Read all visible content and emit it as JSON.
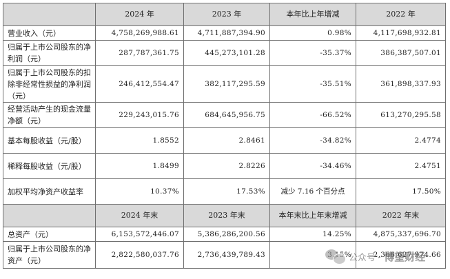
{
  "header1": [
    "2024 年",
    "2023 年",
    "本年比上年增减",
    "2022 年"
  ],
  "rows1": [
    {
      "label": "营业收入（元）",
      "v2024": "4,758,269,988.61",
      "v2023": "4,711,887,394.90",
      "change": "0.98%",
      "v2022": "4,117,698,932.81"
    },
    {
      "label": "归属于上市公司股东的净利润（元）",
      "v2024": "287,787,361.75",
      "v2023": "445,273,101.28",
      "change": "-35.37%",
      "v2022": "386,387,507.01"
    },
    {
      "label": "归属于上市公司股东的扣除非经常性损益的净利润（元）",
      "v2024": "246,412,554.47",
      "v2023": "382,117,295.59",
      "change": "-35.51%",
      "v2022": "361,898,337.93"
    },
    {
      "label": "经营活动产生的现金流量净额（元）",
      "v2024": "229,243,015.76",
      "v2023": "684,645,956.75",
      "change": "-66.52%",
      "v2022": "613,270,295.58"
    },
    {
      "label": "基本每股收益（元/股）",
      "v2024": "1.8552",
      "v2023": "2.8461",
      "change": "-34.82%",
      "v2022": "2.4774"
    },
    {
      "label": "稀释每股收益（元/股）",
      "v2024": "1.8499",
      "v2023": "2.8226",
      "change": "-34.46%",
      "v2022": "2.4751"
    },
    {
      "label": "加权平均净资产收益率",
      "v2024": "10.37%",
      "v2023": "17.53%",
      "change": "减少 7.16 个百分点",
      "v2022": "17.50%"
    }
  ],
  "header2": [
    "2024 年末",
    "2023 年末",
    "本年末比上年末增减",
    "2022 年末"
  ],
  "rows2": [
    {
      "label": "总资产（元）",
      "v2024": "6,153,572,446.07",
      "v2023": "5,386,286,200.56",
      "change": "14.25%",
      "v2022": "4,875,337,696.70"
    },
    {
      "label": "归属于上市公司股东的净资产（元）",
      "v2024": "2,822,580,037.76",
      "v2023": "2,736,439,789.43",
      "change": "3.15%",
      "v2022": "2,366,627,974.66"
    }
  ],
  "watermark": {
    "icon": "wechat-icon",
    "prefix": "公众号 ·",
    "name": "博望财经"
  }
}
